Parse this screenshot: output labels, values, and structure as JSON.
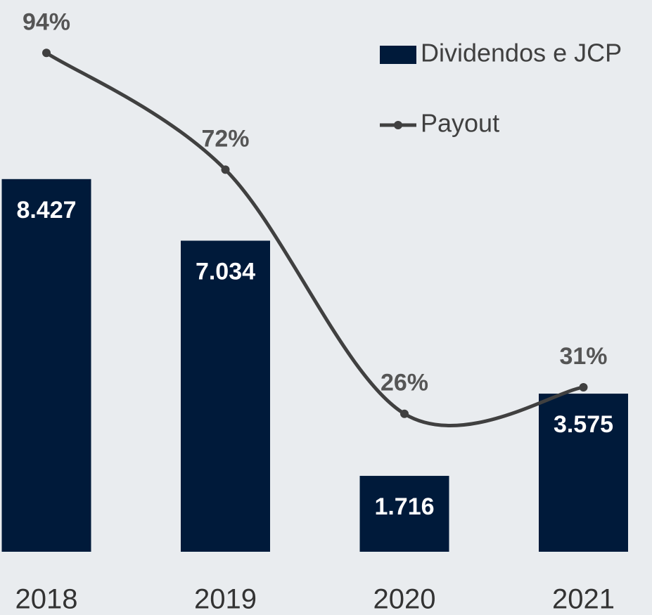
{
  "chart_data": {
    "type": "combo",
    "categories": [
      "2018",
      "2019",
      "2020",
      "2021"
    ],
    "series": [
      {
        "name": "Dividendos e JCP",
        "type": "bar",
        "color": "#001a3a",
        "values": [
          8427,
          7034,
          1716,
          3575
        ],
        "value_labels": [
          "8.427",
          "7.034",
          "1.716",
          "3.575"
        ]
      },
      {
        "name": "Payout",
        "type": "line",
        "axis": "y2",
        "color": "#404040",
        "values": [
          94,
          72,
          26,
          31
        ],
        "value_labels": [
          "94%",
          "72%",
          "26%",
          "31%"
        ]
      }
    ],
    "ylim": [
      0,
      12000
    ],
    "y2lim": [
      0,
      100
    ],
    "legend": "top-right",
    "grid": false
  }
}
